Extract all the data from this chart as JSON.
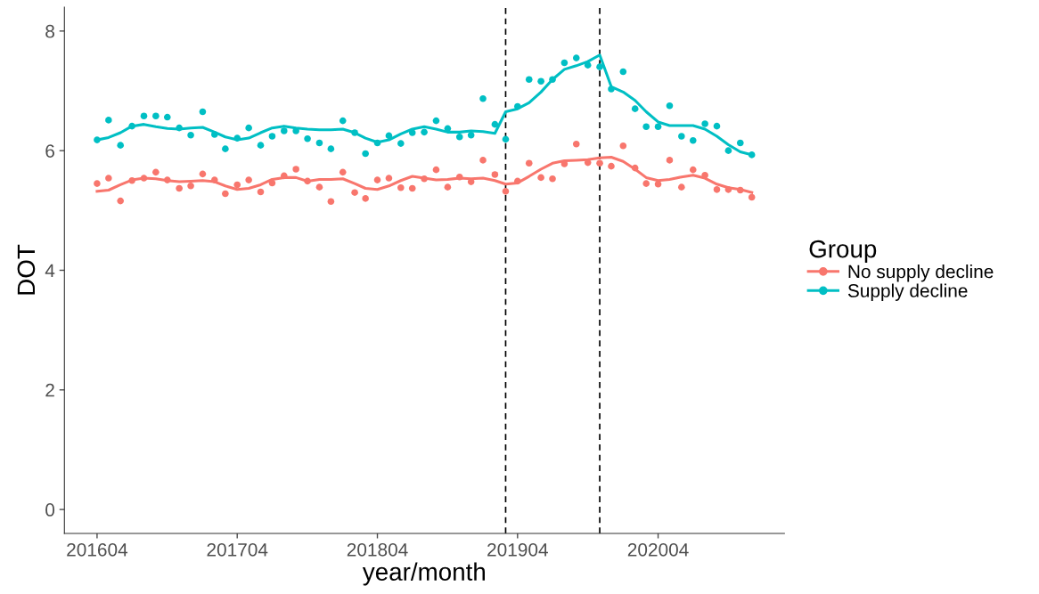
{
  "chart_data": {
    "type": "scatter",
    "xlabel": "year/month",
    "ylabel": "DOT",
    "legend_title": "Group",
    "legend": "right",
    "grid": false,
    "x": [
      "2016-04",
      "2016-05",
      "2016-06",
      "2016-07",
      "2016-08",
      "2016-09",
      "2016-10",
      "2016-11",
      "2016-12",
      "2017-01",
      "2017-02",
      "2017-03",
      "2017-04",
      "2017-05",
      "2017-06",
      "2017-07",
      "2017-08",
      "2017-09",
      "2017-10",
      "2017-11",
      "2017-12",
      "2018-01",
      "2018-02",
      "2018-03",
      "2018-04",
      "2018-05",
      "2018-06",
      "2018-07",
      "2018-08",
      "2018-09",
      "2018-10",
      "2018-11",
      "2018-12",
      "2019-01",
      "2019-02",
      "2019-03",
      "2019-04",
      "2019-05",
      "2019-06",
      "2019-07",
      "2019-08",
      "2019-09",
      "2019-10",
      "2019-11",
      "2019-12",
      "2020-01",
      "2020-02",
      "2020-03",
      "2020-04",
      "2020-05",
      "2020-06",
      "2020-07",
      "2020-08",
      "2020-09",
      "2020-10",
      "2020-11",
      "2020-12"
    ],
    "xlim": [
      "2016-01-07",
      "2021-02-24"
    ],
    "xticks": [
      {
        "value": "2016-04",
        "label": "201604"
      },
      {
        "value": "2017-04",
        "label": "201704"
      },
      {
        "value": "2018-04",
        "label": "201804"
      },
      {
        "value": "2019-04",
        "label": "201904"
      },
      {
        "value": "2020-04",
        "label": "202004"
      }
    ],
    "ylim": [
      -0.4,
      8.4
    ],
    "yticks": [
      0,
      2,
      4,
      6,
      8
    ],
    "ref_lines": [
      {
        "axis": "x",
        "value": "2019-03",
        "color": "#000000",
        "line_style": "dashed"
      },
      {
        "axis": "x",
        "value": "2019-11",
        "color": "#000000",
        "line_style": "dashed"
      }
    ],
    "series": [
      {
        "name": "No supply decline",
        "marker": "circle",
        "color": "#f8766d",
        "values": [
          5.45,
          5.54,
          5.16,
          5.5,
          5.54,
          5.64,
          5.51,
          5.37,
          5.41,
          5.61,
          5.51,
          5.28,
          5.43,
          5.51,
          5.31,
          5.46,
          5.58,
          5.69,
          5.49,
          5.39,
          5.15,
          5.64,
          5.3,
          5.2,
          5.51,
          5.54,
          5.38,
          5.37,
          5.53,
          5.68,
          5.39,
          5.56,
          5.48,
          5.84,
          5.6,
          5.32,
          5.49,
          5.79,
          5.55,
          5.53,
          5.78,
          6.11,
          5.8,
          5.79,
          5.74,
          6.08,
          5.71,
          5.45,
          5.44,
          5.84,
          5.39,
          5.68,
          5.59,
          5.35,
          5.35,
          5.34,
          5.22
        ]
      },
      {
        "name": "Supply decline",
        "marker": "circle",
        "color": "#00bfc4",
        "values": [
          6.18,
          6.51,
          6.09,
          6.41,
          6.58,
          6.58,
          6.56,
          6.38,
          6.26,
          6.65,
          6.27,
          6.03,
          6.21,
          6.38,
          6.09,
          6.24,
          6.33,
          6.33,
          6.2,
          6.13,
          6.03,
          6.5,
          6.3,
          5.95,
          6.13,
          6.25,
          6.12,
          6.3,
          6.31,
          6.5,
          6.37,
          6.23,
          6.26,
          6.87,
          6.44,
          6.19,
          6.74,
          7.19,
          7.16,
          7.19,
          7.47,
          7.55,
          7.43,
          7.4,
          7.03,
          7.32,
          6.7,
          6.4,
          6.4,
          6.75,
          6.24,
          6.17,
          6.45,
          6.41,
          6.0,
          6.13,
          5.93
        ]
      },
      {
        "type": "line",
        "marker": "none",
        "color": "#f8766d",
        "values": [
          5.32,
          5.34,
          5.43,
          5.51,
          5.54,
          5.53,
          5.5,
          5.48,
          5.49,
          5.5,
          5.48,
          5.41,
          5.35,
          5.37,
          5.43,
          5.52,
          5.55,
          5.55,
          5.49,
          5.52,
          5.52,
          5.53,
          5.45,
          5.37,
          5.35,
          5.41,
          5.5,
          5.57,
          5.54,
          5.51,
          5.52,
          5.54,
          5.53,
          5.54,
          5.5,
          5.44,
          5.46,
          5.57,
          5.69,
          5.79,
          5.83,
          5.84,
          5.85,
          5.88,
          5.89,
          5.82,
          5.69,
          5.55,
          5.5,
          5.52,
          5.56,
          5.59,
          5.54,
          5.44,
          5.38,
          5.35,
          5.3
        ]
      },
      {
        "type": "line",
        "marker": "none",
        "color": "#00bfc4",
        "values": [
          6.18,
          6.22,
          6.3,
          6.41,
          6.44,
          6.4,
          6.37,
          6.36,
          6.38,
          6.39,
          6.31,
          6.23,
          6.18,
          6.21,
          6.3,
          6.38,
          6.41,
          6.38,
          6.36,
          6.35,
          6.35,
          6.36,
          6.3,
          6.21,
          6.14,
          6.18,
          6.28,
          6.36,
          6.4,
          6.36,
          6.31,
          6.31,
          6.33,
          6.32,
          6.29,
          6.65,
          6.7,
          6.8,
          6.98,
          7.19,
          7.36,
          7.42,
          7.49,
          7.6,
          7.07,
          6.98,
          6.84,
          6.65,
          6.48,
          6.42,
          6.42,
          6.42,
          6.36,
          6.24,
          6.1,
          5.98,
          5.93
        ]
      }
    ]
  }
}
